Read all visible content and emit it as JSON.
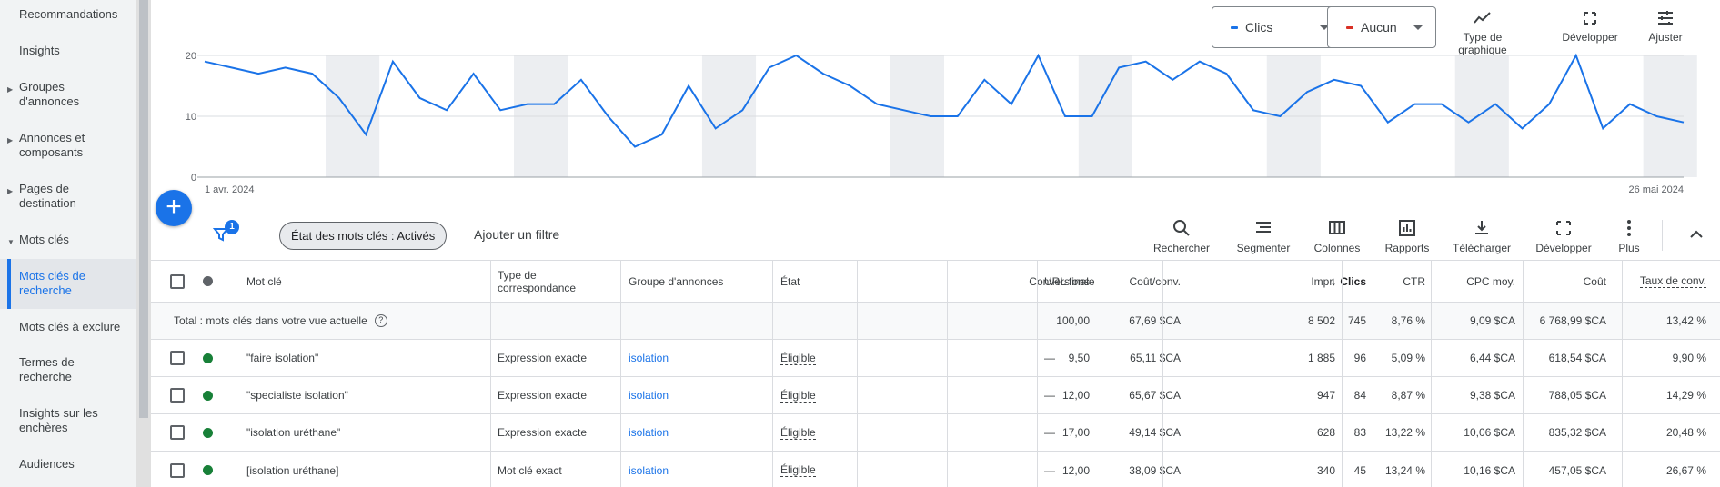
{
  "sidebar": {
    "items": [
      {
        "label": "Recommandations",
        "caret": false,
        "active": false
      },
      {
        "label": "Insights",
        "caret": false,
        "active": false
      },
      {
        "label": "Groupes d'annonces",
        "caret": true,
        "active": false
      },
      {
        "label": "Annonces et composants",
        "caret": true,
        "active": false
      },
      {
        "label": "Pages de destination",
        "caret": true,
        "active": false
      },
      {
        "label": "Mots clés",
        "caret": true,
        "expanded": true,
        "active": false
      },
      {
        "label": "Mots clés de recherche",
        "caret": false,
        "active": true
      },
      {
        "label": "Mots clés à exclure",
        "caret": false,
        "active": false
      },
      {
        "label": "Termes de recherche",
        "caret": false,
        "active": false
      },
      {
        "label": "Insights sur les enchères",
        "caret": false,
        "active": false
      },
      {
        "label": "Audiences",
        "caret": false,
        "active": false
      }
    ]
  },
  "chart_controls": {
    "metric1": {
      "label": "Clics",
      "color": "#1a73e8"
    },
    "metric2": {
      "label": "Aucun",
      "color": "#d93025"
    },
    "tools": [
      {
        "label": "Type de graphique",
        "icon": "chart-type-icon"
      },
      {
        "label": "Développer",
        "icon": "expand-icon"
      },
      {
        "label": "Ajuster",
        "icon": "tune-icon"
      }
    ]
  },
  "chart_data": {
    "type": "line",
    "x_start_label": "1 avr. 2024",
    "x_end_label": "26 mai 2024",
    "yticks": [
      "20",
      "10",
      "0"
    ],
    "ylim": [
      0,
      20
    ],
    "series": [
      {
        "name": "Clics",
        "color": "#1a73e8",
        "values": [
          19,
          18,
          17,
          18,
          17,
          13,
          7,
          19,
          13,
          11,
          17,
          11,
          12,
          12,
          16,
          10,
          5,
          7,
          15,
          8,
          11,
          18,
          20,
          17,
          15,
          12,
          11,
          10,
          10,
          16,
          12,
          20,
          10,
          10,
          18,
          19,
          16,
          19,
          17,
          11,
          10,
          14,
          16,
          15,
          9,
          12,
          12,
          9,
          12,
          8,
          12,
          20,
          8,
          12,
          10,
          9
        ]
      }
    ],
    "weekend_bands": [
      [
        5,
        6
      ],
      [
        12,
        13
      ],
      [
        19,
        20
      ],
      [
        26,
        27
      ],
      [
        33,
        34
      ],
      [
        40,
        41
      ],
      [
        47,
        48
      ],
      [
        54,
        55
      ]
    ]
  },
  "filters": {
    "filter_count": "1",
    "chip_label": "État des mots clés : Activés",
    "add_filter": "Ajouter un filtre"
  },
  "toolbar": {
    "tools": [
      {
        "label": "Rechercher",
        "icon": "search-icon"
      },
      {
        "label": "Segmenter",
        "icon": "segment-icon"
      },
      {
        "label": "Colonnes",
        "icon": "columns-icon"
      },
      {
        "label": "Rapports",
        "icon": "reports-icon"
      },
      {
        "label": "Télécharger",
        "icon": "download-icon"
      },
      {
        "label": "Développer",
        "icon": "expand-icon"
      },
      {
        "label": "Plus",
        "icon": "more-vert-icon"
      }
    ]
  },
  "table": {
    "headers": {
      "keyword": "Mot clé",
      "match_type": "Type de correspondance",
      "ad_group": "Groupe d'annonces",
      "status": "État",
      "conversions": "Conversions",
      "cost_conv": "Coût/conv.",
      "final_url": "URL finale",
      "clicks": "Clics",
      "impr": "Impr.",
      "ctr": "CTR",
      "avg_cpc": "CPC moy.",
      "cost": "Coût",
      "conv_rate": "Taux de conv."
    },
    "total": {
      "label": "Total : mots clés dans votre vue actuelle",
      "conversions": "100,00",
      "cost_conv": "67,69 $CA",
      "clicks": "745",
      "impr": "8 502",
      "ctr": "8,76 %",
      "avg_cpc": "9,09 $CA",
      "cost": "6 768,99 $CA",
      "conv_rate": "13,42 %"
    },
    "rows": [
      {
        "keyword": "\"faire isolation\"",
        "match_type": "Expression exacte",
        "ad_group": "isolation",
        "status": "Éligible",
        "conversions": "9,50",
        "cost_conv": "65,11 $CA",
        "final_url": "—",
        "clicks": "96",
        "impr": "1 885",
        "ctr": "5,09 %",
        "avg_cpc": "6,44 $CA",
        "cost": "618,54 $CA",
        "conv_rate": "9,90 %"
      },
      {
        "keyword": "\"specialiste isolation\"",
        "match_type": "Expression exacte",
        "ad_group": "isolation",
        "status": "Éligible",
        "conversions": "12,00",
        "cost_conv": "65,67 $CA",
        "final_url": "—",
        "clicks": "84",
        "impr": "947",
        "ctr": "8,87 %",
        "avg_cpc": "9,38 $CA",
        "cost": "788,05 $CA",
        "conv_rate": "14,29 %"
      },
      {
        "keyword": "\"isolation uréthane\"",
        "match_type": "Expression exacte",
        "ad_group": "isolation",
        "status": "Éligible",
        "conversions": "17,00",
        "cost_conv": "49,14 $CA",
        "final_url": "—",
        "clicks": "83",
        "impr": "628",
        "ctr": "13,22 %",
        "avg_cpc": "10,06 $CA",
        "cost": "835,32 $CA",
        "conv_rate": "20,48 %"
      },
      {
        "keyword": "[isolation uréthane]",
        "match_type": "Mot clé exact",
        "ad_group": "isolation",
        "status": "Éligible",
        "conversions": "12,00",
        "cost_conv": "38,09 $CA",
        "final_url": "—",
        "clicks": "45",
        "impr": "340",
        "ctr": "13,24 %",
        "avg_cpc": "10,16 $CA",
        "cost": "457,05 $CA",
        "conv_rate": "26,67 %"
      }
    ]
  }
}
